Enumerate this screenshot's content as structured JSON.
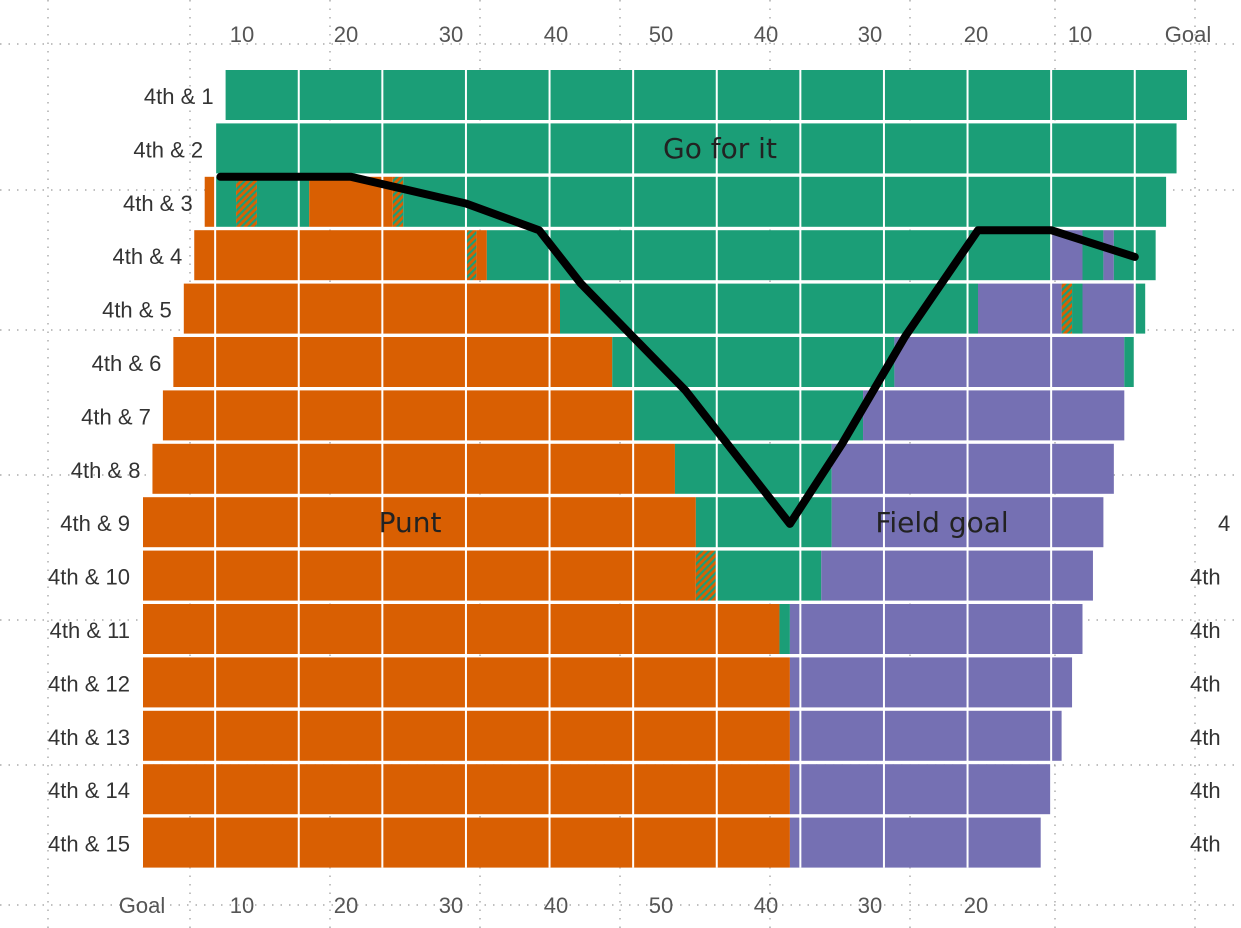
{
  "chart_data": {
    "type": "bar",
    "orientation": "horizontal",
    "xaxis": {
      "range": [
        0,
        100
      ],
      "unit": "yards from own goal line",
      "top_ticks": [
        "10",
        "20",
        "30",
        "40",
        "50",
        "40",
        "30",
        "20",
        "10",
        "Goal"
      ],
      "bottom_ticks": [
        "Goal",
        "10",
        "20",
        "30",
        "40",
        "50",
        "40",
        "30",
        "20"
      ]
    },
    "categories": [
      "4th & 1",
      "4th & 2",
      "4th & 3",
      "4th & 4",
      "4th & 5",
      "4th & 6",
      "4th & 7",
      "4th & 8",
      "4th & 9",
      "4th & 10",
      "4th & 11",
      "4th & 12",
      "4th & 13",
      "4th & 14",
      "4th & 15"
    ],
    "right_labels": [
      "4",
      "4th",
      "4th",
      "4th",
      "4th",
      "4th",
      "4th"
    ],
    "region_labels": {
      "go": "Go for it",
      "punt": "Punt",
      "fg": "Field goal"
    },
    "colors": {
      "punt": "#D95F02",
      "go": "#1B9E77",
      "fg": "#7570B3",
      "line": "#000000",
      "grid": "#ffffff"
    },
    "rows": [
      {
        "start": 8,
        "segments": [
          {
            "type": "go",
            "to": 100
          }
        ]
      },
      {
        "start": 7,
        "segments": [
          {
            "type": "go",
            "to": 99
          }
        ]
      },
      {
        "start": 6,
        "segments": [
          {
            "type": "punt",
            "to": 7
          },
          {
            "type": "go",
            "to": 9
          },
          {
            "type": "mix",
            "to": 11
          },
          {
            "type": "go",
            "to": 16
          },
          {
            "type": "punt",
            "to": 24
          },
          {
            "type": "mix",
            "to": 25
          },
          {
            "type": "go",
            "to": 98
          }
        ]
      },
      {
        "start": 5,
        "segments": [
          {
            "type": "punt",
            "to": 31
          },
          {
            "type": "mix",
            "to": 32
          },
          {
            "type": "punt",
            "to": 33
          },
          {
            "type": "go",
            "to": 87
          },
          {
            "type": "fg",
            "to": 90
          },
          {
            "type": "go",
            "to": 92
          },
          {
            "type": "fg",
            "to": 93
          },
          {
            "type": "go",
            "to": 97
          }
        ]
      },
      {
        "start": 4,
        "segments": [
          {
            "type": "punt",
            "to": 40
          },
          {
            "type": "go",
            "to": 80
          },
          {
            "type": "fg",
            "to": 88
          },
          {
            "type": "mix",
            "to": 89
          },
          {
            "type": "go",
            "to": 90
          },
          {
            "type": "fg",
            "to": 95
          },
          {
            "type": "go",
            "to": 96
          }
        ]
      },
      {
        "start": 3,
        "segments": [
          {
            "type": "punt",
            "to": 45
          },
          {
            "type": "go",
            "to": 72
          },
          {
            "type": "fg",
            "to": 94
          },
          {
            "type": "go",
            "to": 95
          }
        ]
      },
      {
        "start": 2,
        "segments": [
          {
            "type": "punt",
            "to": 47
          },
          {
            "type": "go",
            "to": 69
          },
          {
            "type": "fg",
            "to": 94
          }
        ]
      },
      {
        "start": 1,
        "segments": [
          {
            "type": "punt",
            "to": 51
          },
          {
            "type": "go",
            "to": 66
          },
          {
            "type": "fg",
            "to": 93
          }
        ]
      },
      {
        "start": 0,
        "segments": [
          {
            "type": "punt",
            "to": 53
          },
          {
            "type": "go",
            "to": 66
          },
          {
            "type": "fg",
            "to": 92
          }
        ]
      },
      {
        "start": 0,
        "segments": [
          {
            "type": "punt",
            "to": 53
          },
          {
            "type": "mix",
            "to": 55
          },
          {
            "type": "go",
            "to": 65
          },
          {
            "type": "fg",
            "to": 91
          }
        ]
      },
      {
        "start": 0,
        "segments": [
          {
            "type": "punt",
            "to": 61
          },
          {
            "type": "go",
            "to": 62
          },
          {
            "type": "fg",
            "to": 90
          }
        ]
      },
      {
        "start": 0,
        "segments": [
          {
            "type": "punt",
            "to": 62
          },
          {
            "type": "fg",
            "to": 89
          }
        ]
      },
      {
        "start": 0,
        "segments": [
          {
            "type": "punt",
            "to": 62
          },
          {
            "type": "fg",
            "to": 88
          }
        ]
      },
      {
        "start": 0,
        "segments": [
          {
            "type": "punt",
            "to": 62
          },
          {
            "type": "fg",
            "to": 87
          }
        ]
      },
      {
        "start": 0,
        "segments": [
          {
            "type": "punt",
            "to": 62
          },
          {
            "type": "fg",
            "to": 86
          }
        ]
      }
    ],
    "line": [
      [
        7.5,
        2
      ],
      [
        20,
        2
      ],
      [
        31,
        2.5
      ],
      [
        38,
        3
      ],
      [
        42,
        4
      ],
      [
        47,
        5
      ],
      [
        52,
        6
      ],
      [
        62,
        8.5
      ],
      [
        67,
        7
      ],
      [
        73,
        5
      ],
      [
        80,
        3
      ],
      [
        87,
        3
      ],
      [
        95,
        3.5
      ]
    ]
  }
}
